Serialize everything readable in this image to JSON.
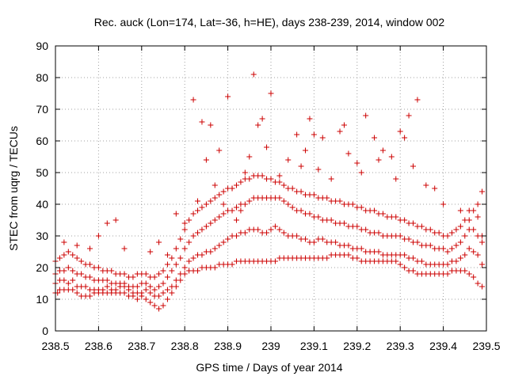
{
  "colors": {
    "points": "#cc0000",
    "grid": "#a0a0a0",
    "frame": "#000000"
  },
  "chart_data": {
    "type": "scatter",
    "title": "Rec. auck (Lon=174, Lat=-36, h=HE), days 238-239, 2014, window 002",
    "xlabel": "GPS time / Days of year 2014",
    "ylabel": "STEC from uqrg / TECUs",
    "xlim": [
      238.5,
      239.5
    ],
    "ylim": [
      0,
      90
    ],
    "xticks": [
      238.5,
      238.6,
      238.7,
      238.8,
      238.9,
      239.0,
      239.1,
      239.2,
      239.3,
      239.4,
      239.5
    ],
    "xtick_labels": [
      "238.5",
      "238.6",
      "238.7",
      "238.8",
      "238.9",
      "239",
      "239.1",
      "239.2",
      "239.3",
      "239.4",
      "239.5"
    ],
    "yticks": [
      0,
      10,
      20,
      30,
      40,
      50,
      60,
      70,
      80,
      90
    ],
    "ytick_labels": [
      "0",
      "10",
      "20",
      "30",
      "40",
      "50",
      "60",
      "70",
      "80",
      "90"
    ],
    "grid": true,
    "marker": "plus",
    "series": [
      {
        "x": [
          238.5,
          238.505,
          238.51,
          238.52,
          238.53,
          238.54,
          238.55,
          238.56,
          238.57,
          238.58,
          238.59,
          238.6,
          238.61,
          238.62,
          238.63,
          238.64,
          238.65,
          238.66,
          238.67,
          238.68,
          238.69,
          238.7,
          238.71,
          238.72,
          238.73,
          238.74,
          238.75,
          238.76,
          238.77,
          238.78,
          238.79,
          238.8,
          238.81,
          238.82,
          238.83,
          238.84,
          238.85,
          238.86,
          238.87,
          238.88,
          238.89,
          238.9,
          238.91,
          238.92,
          238.93,
          238.94,
          238.95,
          238.96,
          238.97,
          238.98,
          238.99,
          239.0,
          239.01,
          239.02,
          239.03,
          239.04,
          239.05,
          239.06,
          239.07,
          239.08,
          239.09,
          239.1,
          239.11,
          239.12,
          239.13,
          239.14,
          239.15,
          239.16,
          239.17,
          239.18,
          239.19,
          239.2,
          239.21,
          239.22,
          239.23,
          239.24,
          239.25,
          239.26,
          239.27,
          239.28,
          239.29,
          239.3,
          239.31,
          239.32,
          239.33,
          239.34,
          239.35,
          239.36,
          239.37,
          239.38,
          239.39,
          239.4,
          239.41,
          239.42,
          239.43,
          239.44,
          239.45,
          239.46,
          239.47,
          239.48,
          239.49
        ],
        "y": [
          12,
          12,
          13,
          13,
          13,
          13,
          12,
          11,
          11,
          11,
          12,
          12,
          12,
          12,
          12,
          12,
          12,
          12,
          11,
          11,
          10,
          11,
          10,
          9,
          8,
          7,
          8,
          10,
          12,
          14,
          16,
          18,
          19,
          19,
          19,
          20,
          20,
          20,
          20,
          21,
          21,
          21,
          21,
          22,
          22,
          22,
          22,
          22,
          22,
          22,
          22,
          22,
          22,
          23,
          23,
          23,
          23,
          23,
          23,
          23,
          23,
          23,
          23,
          23,
          23,
          24,
          24,
          24,
          24,
          24,
          23,
          23,
          22,
          22,
          22,
          22,
          22,
          22,
          22,
          22,
          22,
          21,
          20,
          19,
          19,
          18,
          18,
          18,
          18,
          18,
          18,
          18,
          18,
          19,
          19,
          19,
          19,
          18,
          17,
          15,
          14
        ]
      },
      {
        "x": [
          238.5,
          238.51,
          238.52,
          238.53,
          238.54,
          238.55,
          238.56,
          238.57,
          238.58,
          238.59,
          238.6,
          238.61,
          238.62,
          238.63,
          238.64,
          238.65,
          238.66,
          238.67,
          238.68,
          238.69,
          238.7,
          238.71,
          238.72,
          238.73,
          238.74,
          238.75,
          238.76,
          238.77,
          238.78,
          238.79,
          238.8,
          238.81,
          238.82,
          238.83,
          238.84,
          238.85,
          238.86,
          238.87,
          238.88,
          238.89,
          238.9,
          238.91,
          238.92,
          238.93,
          238.94,
          238.95,
          238.96,
          238.97,
          238.98,
          238.99,
          239.0,
          239.01,
          239.02,
          239.03,
          239.04,
          239.05,
          239.06,
          239.07,
          239.08,
          239.09,
          239.1,
          239.11,
          239.12,
          239.13,
          239.14,
          239.15,
          239.16,
          239.17,
          239.18,
          239.19,
          239.2,
          239.21,
          239.22,
          239.23,
          239.24,
          239.25,
          239.26,
          239.27,
          239.28,
          239.29,
          239.3,
          239.31,
          239.32,
          239.33,
          239.34,
          239.35,
          239.36,
          239.37,
          239.38,
          239.39,
          239.4,
          239.41,
          239.42,
          239.43,
          239.44,
          239.45,
          239.46,
          239.47,
          239.48,
          239.49
        ],
        "y": [
          15,
          16,
          16,
          15,
          16,
          14,
          14,
          14,
          13,
          13,
          13,
          13,
          14,
          13,
          13,
          14,
          14,
          13,
          12,
          12,
          12,
          13,
          12,
          11,
          11,
          12,
          13,
          14,
          16,
          18,
          20,
          22,
          23,
          24,
          24,
          25,
          25,
          26,
          27,
          28,
          29,
          30,
          30,
          31,
          31,
          32,
          32,
          32,
          31,
          31,
          32,
          33,
          32,
          31,
          30,
          30,
          30,
          29,
          29,
          28,
          28,
          29,
          29,
          28,
          28,
          28,
          27,
          27,
          27,
          26,
          26,
          26,
          25,
          25,
          25,
          25,
          24,
          24,
          24,
          24,
          24,
          24,
          23,
          23,
          22,
          22,
          21,
          21,
          21,
          21,
          21,
          21,
          22,
          22,
          23,
          24,
          26,
          25,
          24,
          21
        ]
      },
      {
        "x": [
          238.5,
          238.51,
          238.52,
          238.53,
          238.54,
          238.55,
          238.56,
          238.57,
          238.58,
          238.59,
          238.6,
          238.61,
          238.62,
          238.63,
          238.64,
          238.65,
          238.66,
          238.67,
          238.68,
          238.69,
          238.7,
          238.71,
          238.72,
          238.73,
          238.74,
          238.75,
          238.76,
          238.77,
          238.78,
          238.79,
          238.8,
          238.81,
          238.82,
          238.83,
          238.84,
          238.85,
          238.86,
          238.87,
          238.88,
          238.89,
          238.9,
          238.91,
          238.92,
          238.93,
          238.94,
          238.95,
          238.96,
          238.97,
          238.98,
          238.99,
          239.0,
          239.01,
          239.02,
          239.03,
          239.04,
          239.05,
          239.06,
          239.07,
          239.08,
          239.09,
          239.1,
          239.11,
          239.12,
          239.13,
          239.14,
          239.15,
          239.16,
          239.17,
          239.18,
          239.19,
          239.2,
          239.21,
          239.22,
          239.23,
          239.24,
          239.25,
          239.26,
          239.27,
          239.28,
          239.29,
          239.3,
          239.31,
          239.32,
          239.33,
          239.34,
          239.35,
          239.36,
          239.37,
          239.38,
          239.39,
          239.4,
          239.41,
          239.42,
          239.43,
          239.44,
          239.45,
          239.46,
          239.47,
          239.48,
          239.49
        ],
        "y": [
          18,
          19,
          19,
          20,
          19,
          18,
          18,
          17,
          17,
          16,
          16,
          16,
          16,
          15,
          15,
          15,
          15,
          14,
          14,
          14,
          15,
          15,
          14,
          13,
          14,
          15,
          17,
          19,
          21,
          23,
          26,
          28,
          30,
          31,
          32,
          33,
          34,
          35,
          36,
          37,
          38,
          38,
          39,
          40,
          40,
          41,
          42,
          42,
          42,
          42,
          42,
          42,
          42,
          41,
          40,
          39,
          38,
          38,
          37,
          37,
          36,
          36,
          35,
          35,
          35,
          34,
          34,
          34,
          33,
          33,
          33,
          32,
          32,
          31,
          31,
          31,
          30,
          30,
          30,
          30,
          30,
          29,
          29,
          28,
          28,
          27,
          27,
          27,
          26,
          26,
          26,
          25,
          26,
          27,
          28,
          30,
          32,
          32,
          30,
          28
        ]
      },
      {
        "x": [
          238.5,
          238.51,
          238.52,
          238.53,
          238.54,
          238.55,
          238.56,
          238.57,
          238.58,
          238.59,
          238.6,
          238.61,
          238.62,
          238.63,
          238.64,
          238.65,
          238.66,
          238.67,
          238.68,
          238.69,
          238.7,
          238.71,
          238.72,
          238.73,
          238.74,
          238.75,
          238.76,
          238.77,
          238.78,
          238.79,
          238.8,
          238.81,
          238.82,
          238.83,
          238.84,
          238.85,
          238.86,
          238.87,
          238.88,
          238.89,
          238.9,
          238.91,
          238.92,
          238.93,
          238.94,
          238.95,
          238.96,
          238.97,
          238.98,
          238.99,
          239.0,
          239.01,
          239.02,
          239.03,
          239.04,
          239.05,
          239.06,
          239.07,
          239.08,
          239.09,
          239.1,
          239.11,
          239.12,
          239.13,
          239.14,
          239.15,
          239.16,
          239.17,
          239.18,
          239.19,
          239.2,
          239.21,
          239.22,
          239.23,
          239.24,
          239.25,
          239.26,
          239.27,
          239.28,
          239.29,
          239.3,
          239.31,
          239.32,
          239.33,
          239.34,
          239.35,
          239.36,
          239.37,
          239.38,
          239.39,
          239.4,
          239.41,
          239.42,
          239.43,
          239.44,
          239.45,
          239.46,
          239.47,
          239.48,
          239.49
        ],
        "y": [
          22,
          23,
          24,
          25,
          24,
          23,
          22,
          21,
          21,
          20,
          20,
          19,
          19,
          19,
          18,
          18,
          18,
          17,
          17,
          18,
          18,
          18,
          17,
          17,
          18,
          19,
          21,
          23,
          26,
          29,
          32,
          35,
          37,
          38,
          39,
          40,
          41,
          42,
          43,
          44,
          45,
          45,
          46,
          47,
          48,
          48,
          49,
          49,
          49,
          48,
          48,
          47,
          47,
          46,
          45,
          45,
          44,
          44,
          43,
          43,
          43,
          42,
          42,
          42,
          41,
          41,
          41,
          40,
          40,
          40,
          39,
          39,
          38,
          38,
          38,
          37,
          37,
          36,
          36,
          36,
          35,
          35,
          34,
          34,
          33,
          33,
          32,
          32,
          31,
          31,
          30,
          30,
          31,
          32,
          33,
          35,
          38,
          38,
          36,
          30
        ]
      },
      {
        "x": [
          238.52,
          238.55,
          238.58,
          238.6,
          238.62,
          238.64,
          238.66,
          238.72,
          238.74,
          238.76,
          238.78,
          238.8,
          238.82,
          238.83,
          238.84,
          238.85,
          238.86,
          238.87,
          238.88,
          238.89,
          238.9,
          238.91,
          238.92,
          238.93,
          238.94,
          238.95,
          238.96,
          238.97,
          238.98,
          238.99,
          239.0,
          239.02,
          239.04,
          239.06,
          239.07,
          239.08,
          239.09,
          239.1,
          239.11,
          239.12,
          239.14,
          239.16,
          239.17,
          239.18,
          239.2,
          239.21,
          239.22,
          239.24,
          239.25,
          239.26,
          239.28,
          239.29,
          239.3,
          239.31,
          239.32,
          239.33,
          239.34,
          239.36,
          239.38,
          239.4,
          239.44,
          239.46,
          239.48,
          239.49
        ],
        "y": [
          28,
          27,
          26,
          30,
          34,
          35,
          26,
          25,
          28,
          24,
          37,
          34,
          73,
          41,
          66,
          54,
          65,
          46,
          57,
          40,
          74,
          45,
          35,
          38,
          50,
          55,
          81,
          65,
          67,
          58,
          75,
          49,
          54,
          62,
          52,
          57,
          67,
          62,
          51,
          61,
          48,
          63,
          65,
          56,
          53,
          50,
          68,
          61,
          54,
          57,
          55,
          48,
          63,
          61,
          68,
          52,
          73,
          46,
          45,
          40,
          38,
          35,
          40,
          44
        ]
      }
    ]
  }
}
